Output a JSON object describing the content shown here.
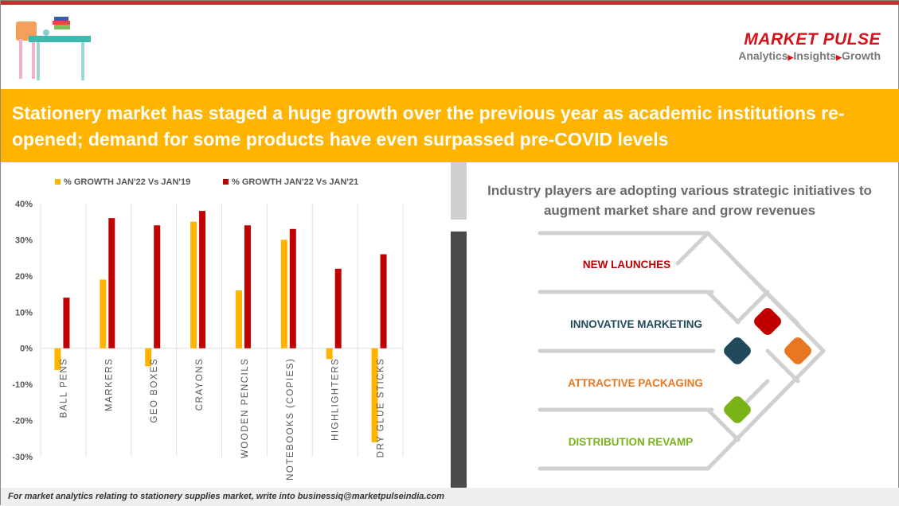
{
  "brand": {
    "name": "MARKET PULSE",
    "tagline": [
      "Analytics",
      "Insights",
      "Growth"
    ],
    "accent": "#d5121b"
  },
  "banner": {
    "text": "Stationery market has staged a huge growth over the previous year as academic institutions re-opened; demand for some products have even surpassed pre-COVID levels",
    "color": "#ffb400"
  },
  "chart_data": {
    "type": "bar",
    "categories": [
      "BALL PENS",
      "MARKERS",
      "GEO BOXES",
      "CRAYONS",
      "WOODEN PENCILS",
      "NOTEBOOKS (COPIES)",
      "HIGHLIGHTERS",
      "DRY GLUE STICKS"
    ],
    "series": [
      {
        "name": "% GROWTH JAN'22 Vs JAN'19",
        "color": "#ffb400",
        "values": [
          -6,
          19,
          -5,
          35,
          16,
          30,
          -3,
          -26
        ]
      },
      {
        "name": "% GROWTH JAN'22 Vs JAN'21",
        "color": "#c00000",
        "values": [
          14,
          36,
          34,
          38,
          34,
          33,
          22,
          26
        ]
      }
    ],
    "ylim": [
      -30,
      40
    ],
    "yticks": [
      "40%",
      "30%",
      "20%",
      "10%",
      "0%",
      "-10%",
      "-20%",
      "-30%"
    ],
    "grid": "vertical category separators",
    "legend": "top"
  },
  "right": {
    "title": "Industry players are adopting various strategic initiatives to augment market share and grow revenues",
    "items": [
      {
        "label": "NEW LAUNCHES",
        "color": "#c00000"
      },
      {
        "label": "INNOVATIVE MARKETING",
        "color": "#214a5c"
      },
      {
        "label": "ATTRACTIVE PACKAGING",
        "color": "#e87722"
      },
      {
        "label": "DISTRIBUTION REVAMP",
        "color": "#7ab317"
      }
    ]
  },
  "footer": {
    "text": "For market analytics relating to stationery supplies market, write into businessiq@marketpulseindia.com"
  }
}
